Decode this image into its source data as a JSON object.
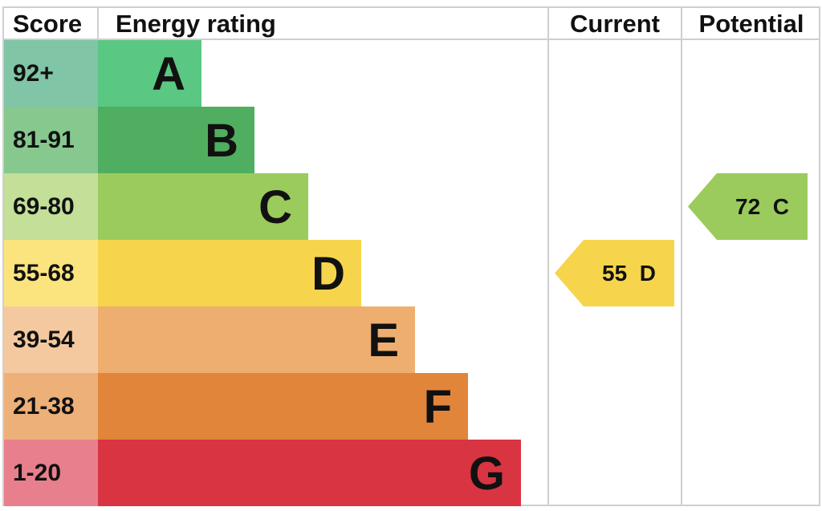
{
  "chart_data": {
    "type": "table",
    "headers": {
      "score": "Score",
      "rating": "Energy rating",
      "current": "Current",
      "potential": "Potential"
    },
    "bands": [
      {
        "range": "92+",
        "letter": "A",
        "color": "#5ac882",
        "score_bg": "#80c5a6"
      },
      {
        "range": "81-91",
        "letter": "B",
        "color": "#4fae5f",
        "score_bg": "#87c88e"
      },
      {
        "range": "69-80",
        "letter": "C",
        "color": "#9acb5c",
        "score_bg": "#c3df98"
      },
      {
        "range": "55-68",
        "letter": "D",
        "color": "#f6d54c",
        "score_bg": "#fbe47d"
      },
      {
        "range": "39-54",
        "letter": "E",
        "color": "#eeae70",
        "score_bg": "#f5c9a0"
      },
      {
        "range": "21-38",
        "letter": "F",
        "color": "#e1853b",
        "score_bg": "#edb078"
      },
      {
        "range": "1-20",
        "letter": "G",
        "color": "#d93441",
        "score_bg": "#e87f8c"
      }
    ],
    "current": {
      "value": 55,
      "band": "D",
      "label": "55  D",
      "color": "#f6d54c"
    },
    "potential": {
      "value": 72,
      "band": "C",
      "label": "72  C",
      "color": "#9acb5c"
    }
  }
}
